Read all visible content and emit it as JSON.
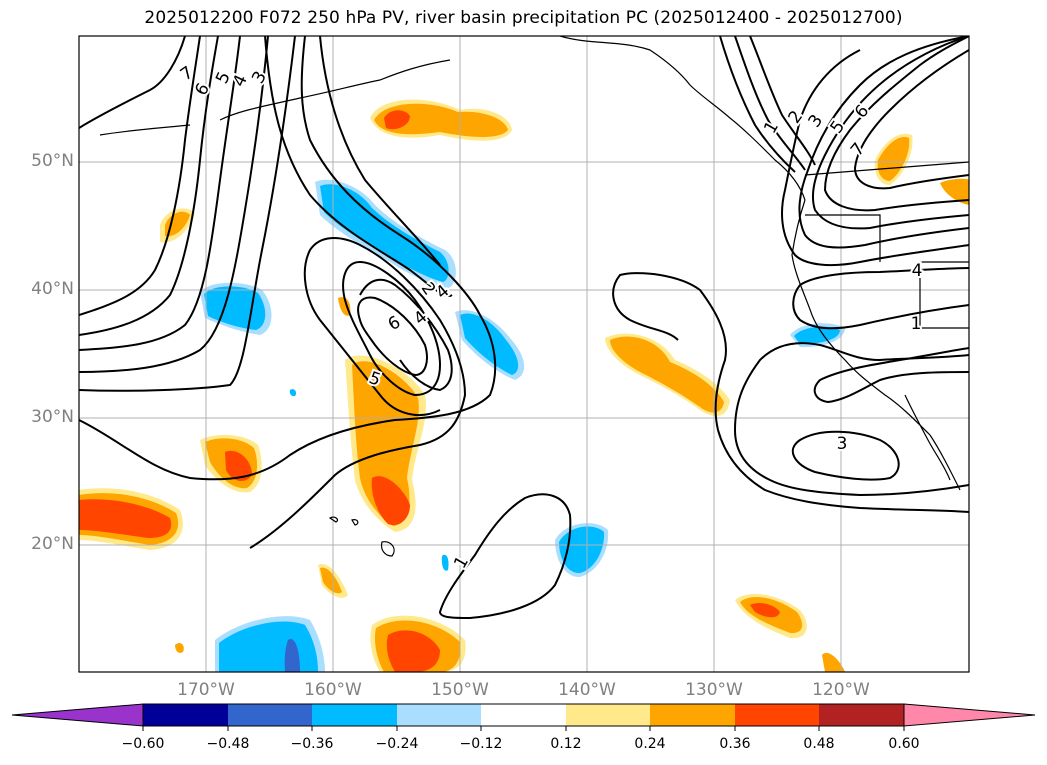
{
  "title": "2025012200 F072 250 hPa PV, river basin precipitation PC (2025012400 - 2025012700)",
  "map": {
    "lat_labels": [
      {
        "text": "50°N",
        "lat": 50
      },
      {
        "text": "40°N",
        "lat": 40
      },
      {
        "text": "30°N",
        "lat": 30
      },
      {
        "text": "20°N",
        "lat": 20
      }
    ],
    "lon_labels": [
      {
        "text": "170°W",
        "lon": -170
      },
      {
        "text": "160°W",
        "lon": -160
      },
      {
        "text": "150°W",
        "lon": -150
      },
      {
        "text": "140°W",
        "lon": -140
      },
      {
        "text": "130°W",
        "lon": -130
      },
      {
        "text": "120°W",
        "lon": -120
      }
    ],
    "contour_labels": [
      "7",
      "6",
      "5",
      "4",
      "3",
      "1",
      "2",
      "3",
      "5",
      "6",
      "7",
      "2",
      "4",
      "6",
      "4",
      "5",
      "1",
      "4",
      "1",
      "3"
    ]
  },
  "colorbar": {
    "colors": [
      "#9933cc",
      "#000099",
      "#3366cc",
      "#00bbff",
      "#aadeff",
      "#ffffff",
      "#ffe98a",
      "#ffa500",
      "#ff4500",
      "#b22222",
      "#ff88aa"
    ],
    "ticks": [
      "−0.60",
      "−0.48",
      "−0.36",
      "−0.24",
      "−0.12",
      "0.12",
      "0.24",
      "0.36",
      "0.48",
      "0.60"
    ]
  }
}
